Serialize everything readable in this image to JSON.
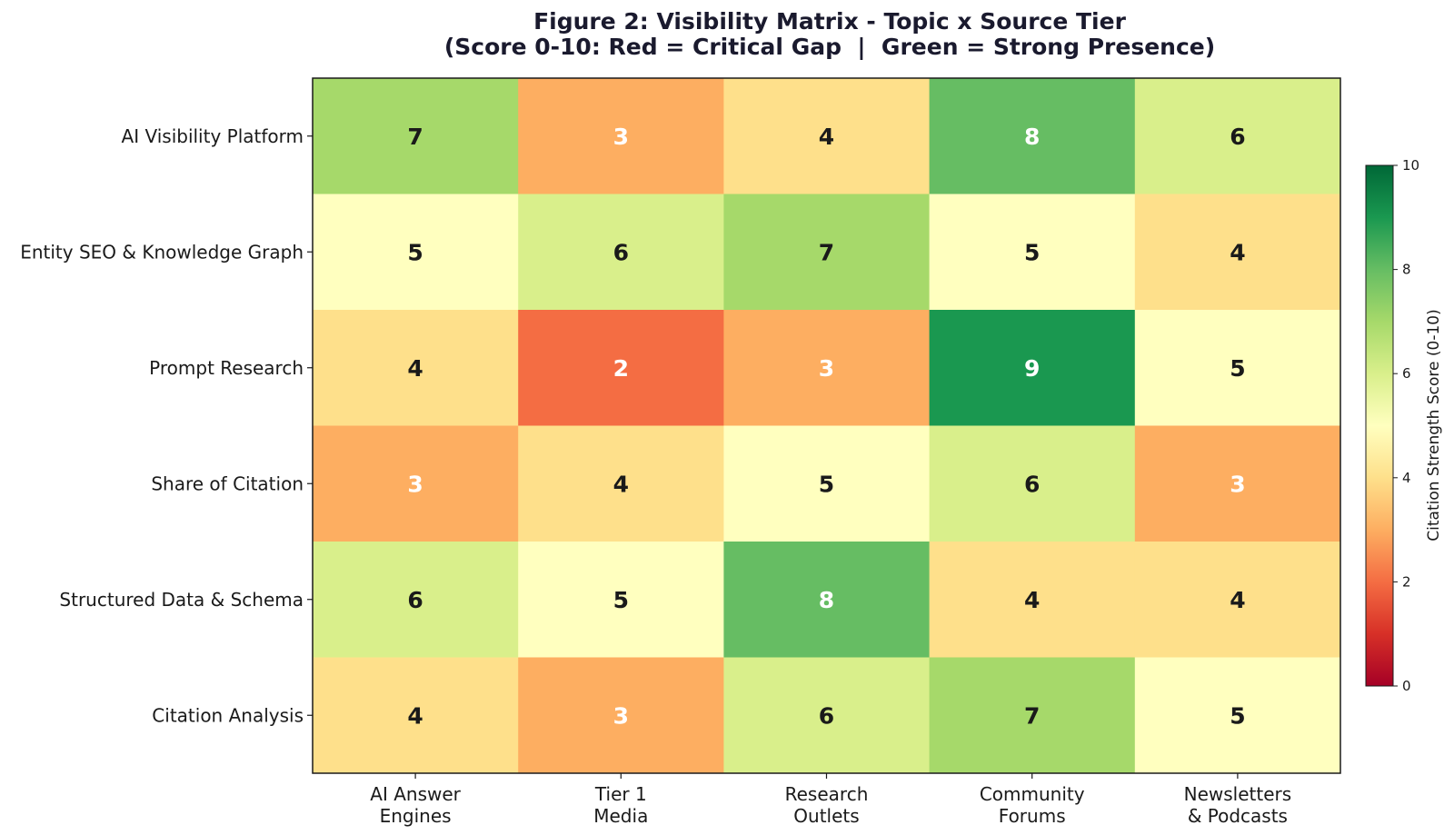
{
  "chart_data": {
    "type": "heatmap",
    "title": "Figure 2: Visibility Matrix - Topic x Source Tier",
    "subtitle": "(Score 0-10: Red = Critical Gap  |  Green = Strong Presence)",
    "rows": [
      "AI Visibility Platform",
      "Entity SEO & Knowledge Graph",
      "Prompt Research",
      "Share of Citation",
      "Structured Data & Schema",
      "Citation Analysis"
    ],
    "columns": [
      [
        "AI Answer",
        "Engines"
      ],
      [
        "Tier 1",
        "Media"
      ],
      [
        "Research",
        "Outlets"
      ],
      [
        "Community",
        "Forums"
      ],
      [
        "Newsletters",
        "& Podcasts"
      ]
    ],
    "values": [
      [
        7,
        3,
        4,
        8,
        6
      ],
      [
        5,
        6,
        7,
        5,
        4
      ],
      [
        4,
        2,
        3,
        9,
        5
      ],
      [
        3,
        4,
        5,
        6,
        3
      ],
      [
        6,
        5,
        8,
        4,
        4
      ],
      [
        4,
        3,
        6,
        7,
        5
      ]
    ],
    "vmin": 0,
    "vmax": 10,
    "colormap": "RdYlGn",
    "colorbar": {
      "label": "Citation Strength Score (0-10)",
      "ticks": [
        0,
        2,
        4,
        6,
        8,
        10
      ]
    }
  }
}
